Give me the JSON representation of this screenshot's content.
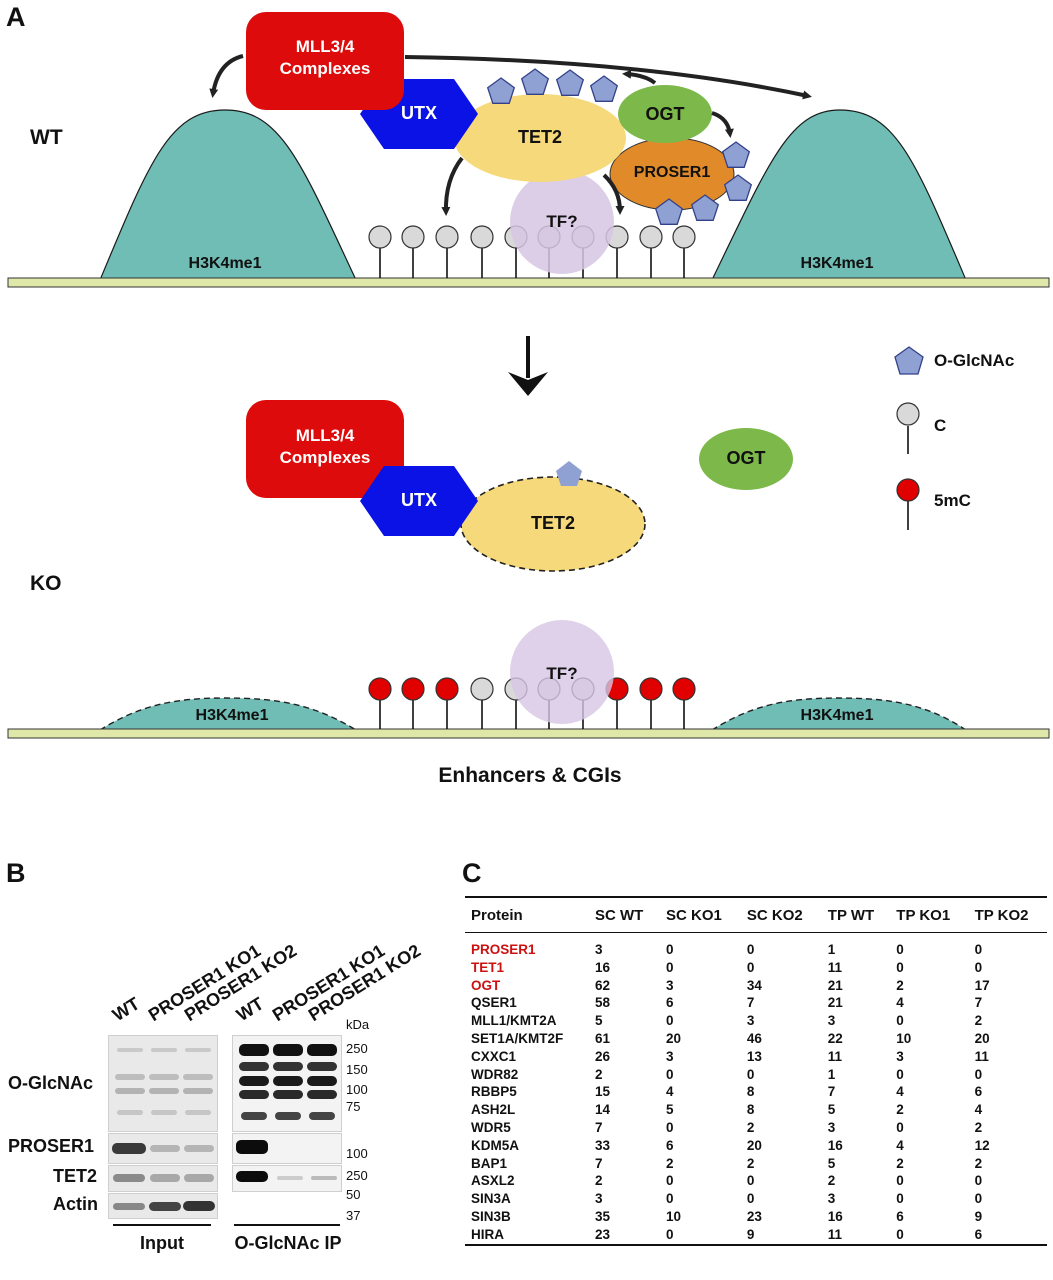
{
  "panel_a": {
    "letter": "A",
    "wt_label": "WT",
    "ko_label": "KO",
    "mll_label_1": "MLL3/4",
    "mll_label_2": "Complexes",
    "utx": "UTX",
    "tet2": "TET2",
    "ogt": "OGT",
    "proser1": "PROSER1",
    "tf": "TF?",
    "h3k4me1": "H3K4me1",
    "legend": {
      "oglcnac": "O-GlcNAc",
      "c": "C",
      "mc": "5mC"
    },
    "footer": "Enhancers & CGIs",
    "colors": {
      "mll": "#dd0b0b",
      "utx": "#0b12e6",
      "tet2": "#f6d97a",
      "ogt": "#7db94a",
      "proser1": "#e08a2a",
      "tf": "#d7c6e3",
      "h3k4me1": "#6fbdb5",
      "dna": "#dfe8a8",
      "pentagon": "#8fa0d2",
      "c": "#d9d9d9",
      "mc": "#e00000"
    }
  },
  "panel_b": {
    "letter": "B",
    "lanes": [
      "WT",
      "PROSER1 KO1",
      "PROSER1 KO2",
      "WT",
      "PROSER1 KO1",
      "PROSER1 KO2"
    ],
    "kda": "kDa",
    "rows": [
      "O-GlcNAc",
      "PROSER1",
      "TET2",
      "Actin"
    ],
    "markers": [
      "250",
      "150",
      "100",
      "75",
      "100",
      "250",
      "50",
      "37"
    ],
    "groups": [
      "Input",
      "O-GlcNAc IP"
    ]
  },
  "panel_c": {
    "letter": "C",
    "headers": [
      "Protein",
      "SC WT",
      "SC KO1",
      "SC KO2",
      "TP WT",
      "TP KO1",
      "TP KO2"
    ],
    "rows": [
      {
        "protein": "PROSER1",
        "values": [
          "3",
          "0",
          "0",
          "1",
          "0",
          "0"
        ]
      },
      {
        "protein": "TET1",
        "values": [
          "16",
          "0",
          "0",
          "11",
          "0",
          "0"
        ]
      },
      {
        "protein": "OGT",
        "values": [
          "62",
          "3",
          "34",
          "21",
          "2",
          "17"
        ]
      },
      {
        "protein": "QSER1",
        "values": [
          "58",
          "6",
          "7",
          "21",
          "4",
          "7"
        ]
      },
      {
        "protein": "MLL1/KMT2A",
        "values": [
          "5",
          "0",
          "3",
          "3",
          "0",
          "2"
        ]
      },
      {
        "protein": "SET1A/KMT2F",
        "values": [
          "61",
          "20",
          "46",
          "22",
          "10",
          "20"
        ]
      },
      {
        "protein": "CXXC1",
        "values": [
          "26",
          "3",
          "13",
          "11",
          "3",
          "11"
        ]
      },
      {
        "protein": "WDR82",
        "values": [
          "2",
          "0",
          "0",
          "1",
          "0",
          "0"
        ]
      },
      {
        "protein": "RBBP5",
        "values": [
          "15",
          "4",
          "8",
          "7",
          "4",
          "6"
        ]
      },
      {
        "protein": "ASH2L",
        "values": [
          "14",
          "5",
          "8",
          "5",
          "2",
          "4"
        ]
      },
      {
        "protein": "WDR5",
        "values": [
          "7",
          "0",
          "2",
          "3",
          "0",
          "2"
        ]
      },
      {
        "protein": "KDM5A",
        "values": [
          "33",
          "6",
          "20",
          "16",
          "4",
          "12"
        ]
      },
      {
        "protein": "BAP1",
        "values": [
          "7",
          "2",
          "2",
          "5",
          "2",
          "2"
        ]
      },
      {
        "protein": "ASXL2",
        "values": [
          "2",
          "0",
          "0",
          "2",
          "0",
          "0"
        ]
      },
      {
        "protein": "SIN3A",
        "values": [
          "3",
          "0",
          "0",
          "3",
          "0",
          "0"
        ]
      },
      {
        "protein": "SIN3B",
        "values": [
          "35",
          "10",
          "23",
          "16",
          "6",
          "9"
        ]
      },
      {
        "protein": "HIRA",
        "values": [
          "23",
          "0",
          "9",
          "11",
          "0",
          "6"
        ]
      }
    ],
    "highlight_color": "#cc1111"
  }
}
